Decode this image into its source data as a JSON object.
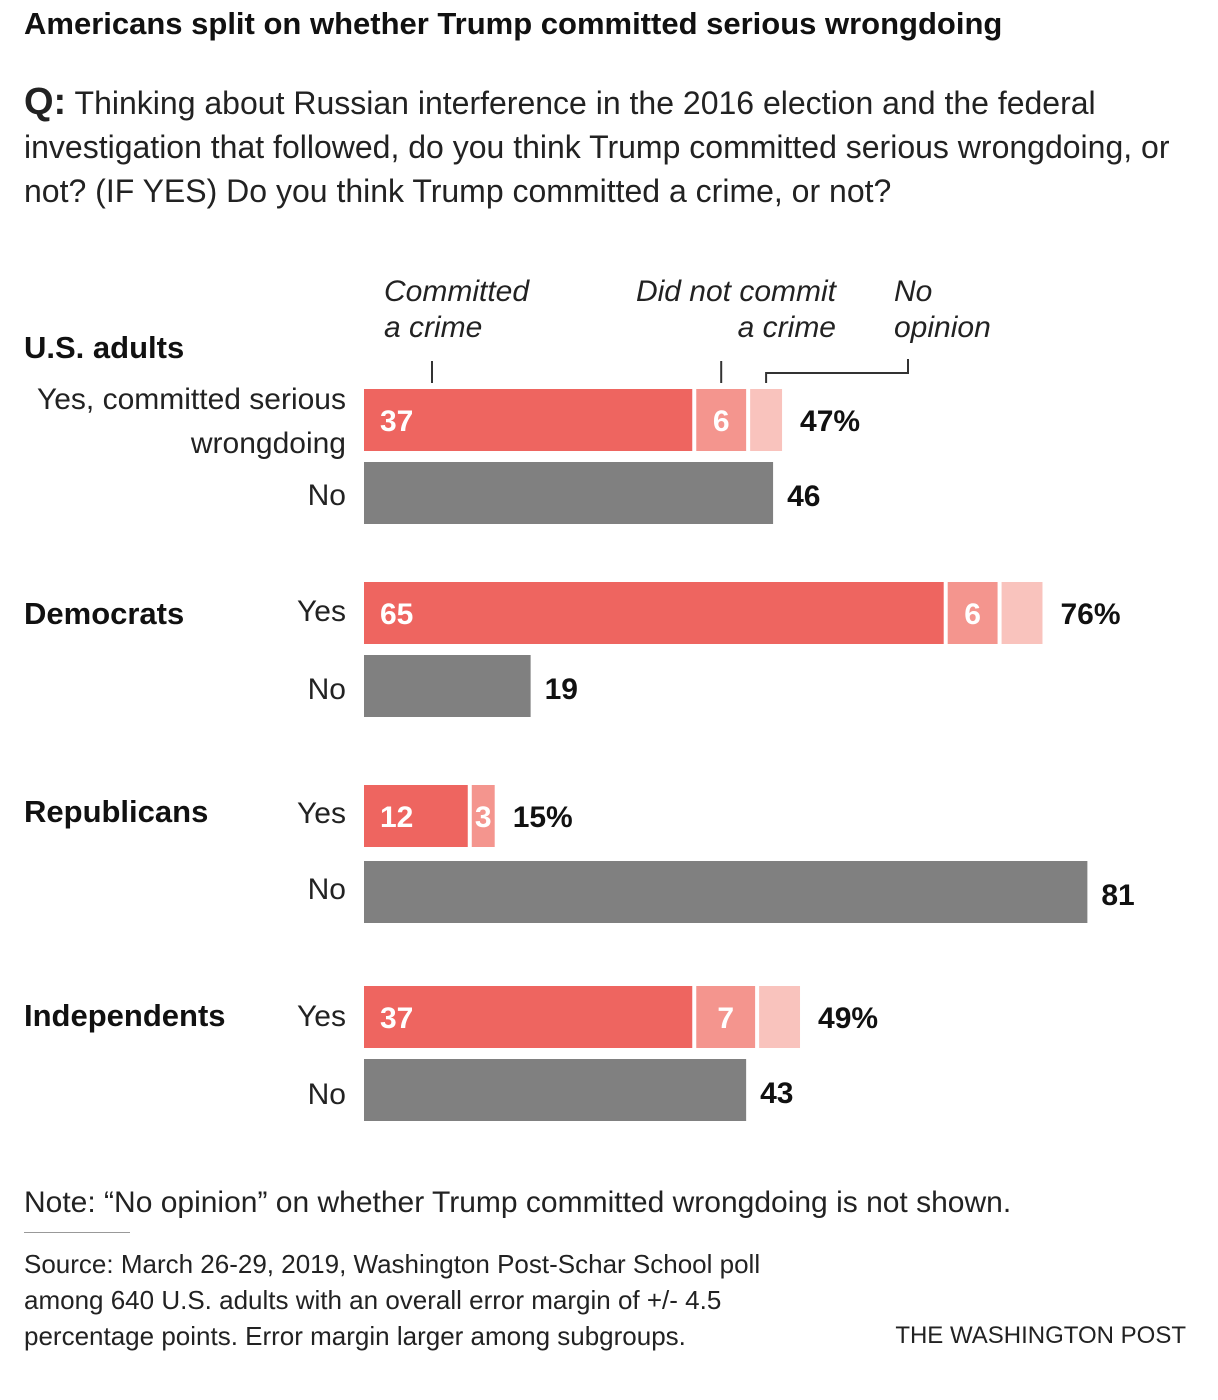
{
  "title": "Americans split on whether Trump committed serious wrongdoing",
  "question": {
    "prefix": "Q:",
    "text": "Thinking about Russian interference in the 2016 election and the federal investigation that followed, do you think Trump committed serious wrongdoing, or not? (IF YES) Do you think Trump committed a crime, or not?"
  },
  "legend": {
    "committed": [
      "Committed",
      "a crime"
    ],
    "not_committed": [
      "Did not commit",
      "a crime"
    ],
    "no_opinion": [
      "No",
      "opinion"
    ]
  },
  "groups": [
    {
      "name": "U.S. adults",
      "yes_label": "Yes, committed serious wrongdoing",
      "no_label": "No"
    },
    {
      "name": "Democrats",
      "yes_label": "Yes",
      "no_label": "No"
    },
    {
      "name": "Republicans",
      "yes_label": "Yes",
      "no_label": "No"
    },
    {
      "name": "Independents",
      "yes_label": "Yes",
      "no_label": "No"
    }
  ],
  "chart_data": {
    "type": "bar",
    "orientation": "horizontal",
    "stacked": true,
    "unit": "%",
    "categories": [
      "U.S. adults",
      "Democrats",
      "Republicans",
      "Independents"
    ],
    "yes_series": [
      {
        "name": "Committed a crime",
        "values": [
          37,
          65,
          12,
          37
        ],
        "color": "#ee6560"
      },
      {
        "name": "Did not commit a crime",
        "values": [
          6,
          6,
          3,
          7
        ],
        "color": "#f4958e"
      },
      {
        "name": "No opinion",
        "values": [
          4,
          5,
          0,
          5
        ],
        "color": "#f9c3bd"
      }
    ],
    "yes_total_labels": [
      "47%",
      "76%",
      "15%",
      "49%"
    ],
    "no_values": [
      46,
      19,
      81,
      43
    ],
    "no_color": "#808080"
  },
  "note": "Note: “No opinion” on whether Trump committed wrongdoing is not shown.",
  "source": "Source: March 26-29, 2019, Washington Post-Schar School poll among 640 U.S. adults with an overall error margin of +/- 4.5 percentage points. Error margin larger among subgroups.",
  "credit": "THE WASHINGTON POST"
}
